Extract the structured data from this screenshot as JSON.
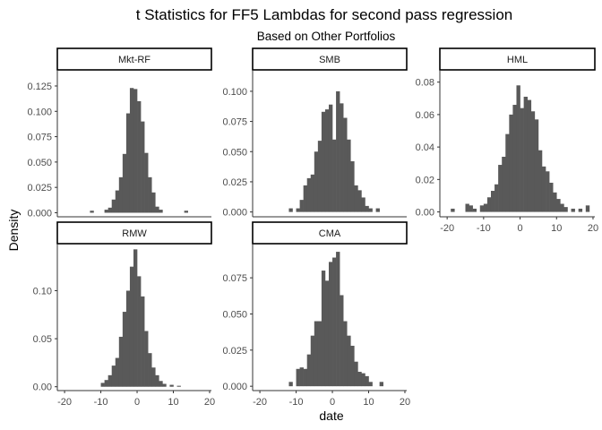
{
  "chart_data": {
    "type": "histogram",
    "title": "t Statistics for FF5 Lambdas for second pass regression",
    "subtitle": "Based on Other Portfolios",
    "xlabel": "date",
    "ylabel": "Density",
    "grid": false,
    "bin_width": 1,
    "panels": [
      {
        "name": "Mkt-RF",
        "xlim": [
          -22,
          20.5
        ],
        "ylim": [
          -0.004,
          0.14
        ],
        "yticks": [
          0.0,
          0.025,
          0.05,
          0.075,
          0.1,
          0.125
        ],
        "ytick_labels": [
          "0.000",
          "0.025",
          "0.050",
          "0.075",
          "0.100",
          "0.125"
        ],
        "xticks": [],
        "bins": [
          {
            "x": -13,
            "y": 0.002
          },
          {
            "x": -9,
            "y": 0.003
          },
          {
            "x": -8,
            "y": 0.005
          },
          {
            "x": -7,
            "y": 0.013
          },
          {
            "x": -6,
            "y": 0.022
          },
          {
            "x": -5,
            "y": 0.035
          },
          {
            "x": -4,
            "y": 0.058
          },
          {
            "x": -3,
            "y": 0.098
          },
          {
            "x": -2,
            "y": 0.123
          },
          {
            "x": -1,
            "y": 0.122
          },
          {
            "x": 0,
            "y": 0.11
          },
          {
            "x": 1,
            "y": 0.09
          },
          {
            "x": 2,
            "y": 0.059
          },
          {
            "x": 3,
            "y": 0.035
          },
          {
            "x": 4,
            "y": 0.02
          },
          {
            "x": 5,
            "y": 0.006
          },
          {
            "x": 6,
            "y": 0.003
          },
          {
            "x": 13,
            "y": 0.002
          }
        ]
      },
      {
        "name": "SMB",
        "xlim": [
          -22,
          20.5
        ],
        "ylim": [
          -0.004,
          0.117
        ],
        "yticks": [
          0.0,
          0.025,
          0.05,
          0.075,
          0.1
        ],
        "ytick_labels": [
          "0.000",
          "0.025",
          "0.050",
          "0.075",
          "0.100"
        ],
        "xticks": [],
        "bins": [
          {
            "x": -12,
            "y": 0.003
          },
          {
            "x": -10,
            "y": 0.003
          },
          {
            "x": -9,
            "y": 0.01
          },
          {
            "x": -8,
            "y": 0.022
          },
          {
            "x": -7,
            "y": 0.028
          },
          {
            "x": -6,
            "y": 0.031
          },
          {
            "x": -5,
            "y": 0.05
          },
          {
            "x": -4,
            "y": 0.059
          },
          {
            "x": -3,
            "y": 0.083
          },
          {
            "x": -2,
            "y": 0.085
          },
          {
            "x": -1,
            "y": 0.089
          },
          {
            "x": 0,
            "y": 0.06
          },
          {
            "x": 1,
            "y": 0.1
          },
          {
            "x": 2,
            "y": 0.09
          },
          {
            "x": 3,
            "y": 0.078
          },
          {
            "x": 4,
            "y": 0.06
          },
          {
            "x": 5,
            "y": 0.042
          },
          {
            "x": 6,
            "y": 0.022
          },
          {
            "x": 7,
            "y": 0.018
          },
          {
            "x": 8,
            "y": 0.012
          },
          {
            "x": 9,
            "y": 0.005
          },
          {
            "x": 10,
            "y": 0.003
          },
          {
            "x": 12,
            "y": 0.003
          }
        ]
      },
      {
        "name": "HML",
        "xlim": [
          -22,
          20.5
        ],
        "ylim": [
          -0.003,
          0.087
        ],
        "yticks": [
          0.0,
          0.02,
          0.04,
          0.06,
          0.08
        ],
        "ytick_labels": [
          "0.00",
          "0.02",
          "0.04",
          "0.06",
          "0.08"
        ],
        "xticks": [
          -20,
          -10,
          0,
          10,
          20
        ],
        "xtick_labels": [
          "-20",
          "-10",
          "0",
          "10",
          "20"
        ],
        "bins": [
          {
            "x": -19,
            "y": 0.002
          },
          {
            "x": -15,
            "y": 0.005
          },
          {
            "x": -14,
            "y": 0.004
          },
          {
            "x": -13,
            "y": 0.002
          },
          {
            "x": -11,
            "y": 0.004
          },
          {
            "x": -10,
            "y": 0.005
          },
          {
            "x": -9,
            "y": 0.009
          },
          {
            "x": -8,
            "y": 0.013
          },
          {
            "x": -7,
            "y": 0.017
          },
          {
            "x": -6,
            "y": 0.029
          },
          {
            "x": -5,
            "y": 0.034
          },
          {
            "x": -4,
            "y": 0.048
          },
          {
            "x": -3,
            "y": 0.06
          },
          {
            "x": -2,
            "y": 0.066
          },
          {
            "x": -1,
            "y": 0.078
          },
          {
            "x": 0,
            "y": 0.064
          },
          {
            "x": 1,
            "y": 0.071
          },
          {
            "x": 2,
            "y": 0.069
          },
          {
            "x": 3,
            "y": 0.062
          },
          {
            "x": 4,
            "y": 0.057
          },
          {
            "x": 5,
            "y": 0.038
          },
          {
            "x": 6,
            "y": 0.028
          },
          {
            "x": 7,
            "y": 0.025
          },
          {
            "x": 8,
            "y": 0.018
          },
          {
            "x": 9,
            "y": 0.012
          },
          {
            "x": 10,
            "y": 0.008
          },
          {
            "x": 11,
            "y": 0.005
          },
          {
            "x": 12,
            "y": 0.003
          },
          {
            "x": 14,
            "y": 0.002
          },
          {
            "x": 16,
            "y": 0.002
          },
          {
            "x": 18,
            "y": 0.004
          }
        ]
      },
      {
        "name": "RMW",
        "xlim": [
          -22,
          20.5
        ],
        "ylim": [
          -0.004,
          0.148
        ],
        "yticks": [
          0.0,
          0.05,
          0.1
        ],
        "ytick_labels": [
          "0.00",
          "0.05",
          "0.10"
        ],
        "xticks": [
          -20,
          -10,
          0,
          10,
          20
        ],
        "xtick_labels": [
          "-20",
          "-10",
          "0",
          "10",
          "20"
        ],
        "bins": [
          {
            "x": -10,
            "y": 0.004
          },
          {
            "x": -9,
            "y": 0.007
          },
          {
            "x": -8,
            "y": 0.012
          },
          {
            "x": -7,
            "y": 0.022
          },
          {
            "x": -6,
            "y": 0.03
          },
          {
            "x": -5,
            "y": 0.052
          },
          {
            "x": -4,
            "y": 0.078
          },
          {
            "x": -3,
            "y": 0.1
          },
          {
            "x": -2,
            "y": 0.125
          },
          {
            "x": -1,
            "y": 0.143
          },
          {
            "x": 0,
            "y": 0.115
          },
          {
            "x": 1,
            "y": 0.094
          },
          {
            "x": 2,
            "y": 0.058
          },
          {
            "x": 3,
            "y": 0.035
          },
          {
            "x": 4,
            "y": 0.02
          },
          {
            "x": 5,
            "y": 0.012
          },
          {
            "x": 6,
            "y": 0.006
          },
          {
            "x": 7,
            "y": 0.003
          },
          {
            "x": 9,
            "y": 0.002
          },
          {
            "x": 11,
            "y": 0.001
          }
        ]
      },
      {
        "name": "CMA",
        "xlim": [
          -22,
          20.5
        ],
        "ylim": [
          -0.003,
          0.098
        ],
        "yticks": [
          0.0,
          0.025,
          0.05,
          0.075
        ],
        "ytick_labels": [
          "0.000",
          "0.025",
          "0.050",
          "0.075"
        ],
        "xticks": [
          -20,
          -10,
          0,
          10,
          20
        ],
        "xtick_labels": [
          "-20",
          "-10",
          "0",
          "10",
          "20"
        ],
        "bins": [
          {
            "x": -12,
            "y": 0.003
          },
          {
            "x": -10,
            "y": 0.012
          },
          {
            "x": -9,
            "y": 0.013
          },
          {
            "x": -8,
            "y": 0.012
          },
          {
            "x": -7,
            "y": 0.022
          },
          {
            "x": -6,
            "y": 0.035
          },
          {
            "x": -5,
            "y": 0.045
          },
          {
            "x": -4,
            "y": 0.045
          },
          {
            "x": -3,
            "y": 0.08
          },
          {
            "x": -2,
            "y": 0.073
          },
          {
            "x": -1,
            "y": 0.086
          },
          {
            "x": 0,
            "y": 0.089
          },
          {
            "x": 1,
            "y": 0.093
          },
          {
            "x": 2,
            "y": 0.063
          },
          {
            "x": 3,
            "y": 0.045
          },
          {
            "x": 4,
            "y": 0.035
          },
          {
            "x": 5,
            "y": 0.028
          },
          {
            "x": 6,
            "y": 0.017
          },
          {
            "x": 7,
            "y": 0.01
          },
          {
            "x": 8,
            "y": 0.009
          },
          {
            "x": 9,
            "y": 0.007
          },
          {
            "x": 10,
            "y": 0.003
          },
          {
            "x": 13,
            "y": 0.003
          }
        ]
      }
    ]
  },
  "colors": {
    "bar_fill": "#595959",
    "axis": "#333333",
    "tick_label": "#4d4d4d",
    "strip_fill": "#ffffff",
    "strip_border": "#000000",
    "text": "#000000"
  }
}
